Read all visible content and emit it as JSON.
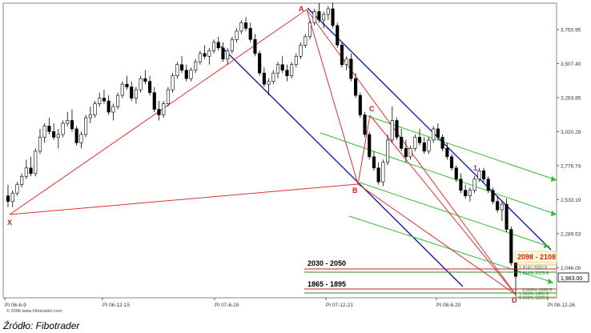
{
  "caption": "Źródło: Fibotrader",
  "chart_data": {
    "type": "candlestick",
    "copyright": "© 2008 www.Fibotrader.com",
    "x_ticks": [
      "Pt 06-6-9",
      "Pt 06-12-15",
      "Pt 07-6-15",
      "Pt 07-12-21",
      "Pt 08-6-20",
      "Pt 08-12-26"
    ],
    "y_ticks": [
      2046.0,
      2289.53,
      2533.19,
      2776.74,
      3020.29,
      3263.85,
      3507.4,
      3750.95
    ],
    "y_range": [
      1830,
      3940
    ],
    "last_price_label": "1,983.00",
    "pattern_points": [
      {
        "label": "X",
        "x": 0,
        "y": 2480
      },
      {
        "label": "A",
        "x": 71,
        "y": 3945
      },
      {
        "label": "B",
        "x": 83,
        "y": 2630
      },
      {
        "label": "C",
        "x": 86,
        "y": 3200
      },
      {
        "label": "D",
        "x": 122,
        "y": 1840
      },
      {
        "label": "1",
        "x": 111,
        "y": 2740
      }
    ],
    "zone_labels": [
      {
        "text": "2098 - 2108",
        "color": "#d22020"
      },
      {
        "text": "2030 - 2050",
        "color": "#000000"
      },
      {
        "text": "1865 - 1895",
        "color": "#000000"
      }
    ],
    "small_fib_labels": [
      "1.4142 2050.8",
      "1.618% 2025.8",
      "2.000% 1895.5",
      "1.000% 1850.5",
      "0.618% 1895.5"
    ],
    "candles": [
      [
        2560,
        2640,
        2480,
        2520
      ],
      [
        2520,
        2600,
        2480,
        2580
      ],
      [
        2580,
        2660,
        2560,
        2640
      ],
      [
        2640,
        2720,
        2620,
        2700
      ],
      [
        2700,
        2820,
        2680,
        2760
      ],
      [
        2760,
        2840,
        2700,
        2720
      ],
      [
        2720,
        2900,
        2700,
        2880
      ],
      [
        2880,
        3040,
        2860,
        2980
      ],
      [
        2980,
        3080,
        2940,
        3060
      ],
      [
        3060,
        3120,
        3000,
        3020
      ],
      [
        3020,
        3080,
        2960,
        2980
      ],
      [
        2980,
        3040,
        2900,
        3000
      ],
      [
        3000,
        3100,
        2980,
        3080
      ],
      [
        3080,
        3160,
        3060,
        3100
      ],
      [
        3100,
        3180,
        3020,
        3040
      ],
      [
        3040,
        3060,
        2920,
        2940
      ],
      [
        2940,
        3020,
        2900,
        3000
      ],
      [
        3000,
        3140,
        2980,
        3120
      ],
      [
        3120,
        3200,
        3080,
        3140
      ],
      [
        3140,
        3240,
        3120,
        3220
      ],
      [
        3220,
        3300,
        3200,
        3260
      ],
      [
        3260,
        3320,
        3220,
        3240
      ],
      [
        3240,
        3280,
        3140,
        3160
      ],
      [
        3160,
        3220,
        3100,
        3200
      ],
      [
        3200,
        3300,
        3180,
        3280
      ],
      [
        3280,
        3380,
        3260,
        3360
      ],
      [
        3360,
        3420,
        3320,
        3340
      ],
      [
        3340,
        3380,
        3240,
        3260
      ],
      [
        3260,
        3340,
        3220,
        3320
      ],
      [
        3320,
        3420,
        3300,
        3400
      ],
      [
        3400,
        3460,
        3360,
        3380
      ],
      [
        3380,
        3420,
        3280,
        3300
      ],
      [
        3300,
        3340,
        3160,
        3180
      ],
      [
        3180,
        3240,
        3100,
        3140
      ],
      [
        3140,
        3240,
        3120,
        3220
      ],
      [
        3220,
        3340,
        3200,
        3320
      ],
      [
        3320,
        3440,
        3300,
        3420
      ],
      [
        3420,
        3520,
        3400,
        3500
      ],
      [
        3500,
        3560,
        3440,
        3460
      ],
      [
        3460,
        3500,
        3380,
        3400
      ],
      [
        3400,
        3480,
        3380,
        3460
      ],
      [
        3460,
        3540,
        3440,
        3520
      ],
      [
        3520,
        3600,
        3500,
        3580
      ],
      [
        3580,
        3640,
        3540,
        3560
      ],
      [
        3560,
        3620,
        3500,
        3600
      ],
      [
        3600,
        3680,
        3580,
        3660
      ],
      [
        3660,
        3700,
        3600,
        3620
      ],
      [
        3620,
        3660,
        3520,
        3540
      ],
      [
        3540,
        3620,
        3500,
        3600
      ],
      [
        3600,
        3700,
        3580,
        3680
      ],
      [
        3680,
        3760,
        3660,
        3740
      ],
      [
        3740,
        3820,
        3720,
        3800
      ],
      [
        3800,
        3840,
        3740,
        3760
      ],
      [
        3760,
        3800,
        3660,
        3680
      ],
      [
        3680,
        3720,
        3560,
        3580
      ],
      [
        3580,
        3600,
        3420,
        3440
      ],
      [
        3440,
        3480,
        3340,
        3360
      ],
      [
        3360,
        3400,
        3280,
        3380
      ],
      [
        3380,
        3460,
        3360,
        3440
      ],
      [
        3440,
        3520,
        3400,
        3500
      ],
      [
        3500,
        3560,
        3440,
        3460
      ],
      [
        3460,
        3500,
        3380,
        3420
      ],
      [
        3420,
        3520,
        3400,
        3500
      ],
      [
        3500,
        3580,
        3480,
        3560
      ],
      [
        3560,
        3660,
        3540,
        3640
      ],
      [
        3640,
        3720,
        3620,
        3700
      ],
      [
        3700,
        3820,
        3680,
        3800
      ],
      [
        3800,
        3900,
        3780,
        3880
      ],
      [
        3880,
        3940,
        3800,
        3820
      ],
      [
        3820,
        3880,
        3760,
        3860
      ],
      [
        3860,
        3920,
        3820,
        3900
      ],
      [
        3900,
        3945,
        3760,
        3780
      ],
      [
        3780,
        3800,
        3620,
        3640
      ],
      [
        3640,
        3660,
        3480,
        3500
      ],
      [
        3500,
        3560,
        3460,
        3540
      ],
      [
        3540,
        3580,
        3380,
        3400
      ],
      [
        3400,
        3440,
        3260,
        3280
      ],
      [
        3280,
        3300,
        3120,
        3140
      ],
      [
        3140,
        3160,
        2980,
        3000
      ],
      [
        3000,
        3020,
        2820,
        2840
      ],
      [
        2840,
        2880,
        2740,
        2760
      ],
      [
        2760,
        2800,
        2640,
        2660
      ],
      [
        2660,
        2820,
        2630,
        2800
      ],
      [
        2800,
        3000,
        2780,
        2960
      ],
      [
        2960,
        3200,
        2940,
        3100
      ],
      [
        3100,
        3120,
        2960,
        2980
      ],
      [
        2980,
        3040,
        2880,
        2900
      ],
      [
        2900,
        2960,
        2800,
        2840
      ],
      [
        2840,
        2920,
        2820,
        2900
      ],
      [
        2900,
        3000,
        2880,
        2980
      ],
      [
        2980,
        3040,
        2920,
        2940
      ],
      [
        2940,
        2980,
        2860,
        2880
      ],
      [
        2880,
        2980,
        2860,
        2960
      ],
      [
        2960,
        3060,
        2940,
        3040
      ],
      [
        3040,
        3080,
        2960,
        2980
      ],
      [
        2980,
        3000,
        2880,
        2900
      ],
      [
        2900,
        2940,
        2820,
        2840
      ],
      [
        2840,
        2860,
        2740,
        2760
      ],
      [
        2760,
        2780,
        2660,
        2680
      ],
      [
        2680,
        2720,
        2580,
        2600
      ],
      [
        2600,
        2640,
        2540,
        2560
      ],
      [
        2560,
        2620,
        2520,
        2600
      ],
      [
        2600,
        2700,
        2580,
        2680
      ],
      [
        2680,
        2760,
        2660,
        2740
      ],
      [
        2740,
        2760,
        2660,
        2680
      ],
      [
        2680,
        2700,
        2580,
        2600
      ],
      [
        2600,
        2620,
        2500,
        2520
      ],
      [
        2520,
        2560,
        2440,
        2460
      ],
      [
        2460,
        2520,
        2380,
        2500
      ],
      [
        2500,
        2540,
        2300,
        2320
      ],
      [
        2320,
        2340,
        2060,
        2080
      ],
      [
        2080,
        2120,
        1840,
        1983
      ]
    ]
  }
}
